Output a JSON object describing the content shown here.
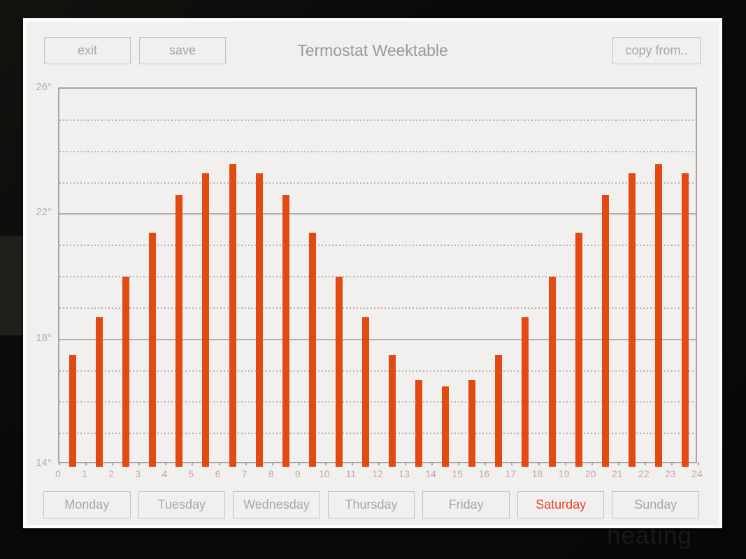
{
  "window": {
    "title": "Termostat Weektable",
    "buttons": {
      "exit": "exit",
      "save": "save",
      "copy_from": "copy from.."
    }
  },
  "background_text": "heating",
  "tabs": {
    "items": [
      {
        "label": "Monday",
        "selected": false
      },
      {
        "label": "Tuesday",
        "selected": false
      },
      {
        "label": "Wednesday",
        "selected": false
      },
      {
        "label": "Thursday",
        "selected": false
      },
      {
        "label": "Friday",
        "selected": false
      },
      {
        "label": "Saturday",
        "selected": true
      },
      {
        "label": "Sunday",
        "selected": false
      }
    ]
  },
  "colors": {
    "accent_bar": "#e24a12",
    "accent_selected_tab": "#e8432b",
    "window_bg": "#f1f0ef",
    "border_gray": "#c3c2c1",
    "button_text_gray": "#a8a7a6",
    "axis_gray": "#a7a6a5",
    "tick_label_gray": "#b1b0af"
  },
  "chart_data": {
    "type": "bar",
    "x_unit": "hour of day",
    "y_unit": "degrees Celsius",
    "categories": [
      0,
      1,
      2,
      3,
      4,
      5,
      6,
      7,
      8,
      9,
      10,
      11,
      12,
      13,
      14,
      15,
      16,
      17,
      18,
      19,
      20,
      21,
      22,
      23
    ],
    "values": [
      17.5,
      18.7,
      20,
      21.4,
      22.6,
      23.3,
      23.6,
      23.3,
      22.6,
      21.4,
      20,
      18.7,
      17.5,
      16.7,
      16.5,
      16.7,
      17.5,
      18.7,
      20,
      21.4,
      22.6,
      23.3,
      23.6,
      23.3
    ],
    "title": "",
    "xlabel": "",
    "ylabel": "",
    "xlim": [
      0,
      24
    ],
    "ylim": [
      14,
      26
    ],
    "y_major_ticks": [
      {
        "value": 26,
        "label": "26°"
      },
      {
        "value": 22,
        "label": "22°"
      },
      {
        "value": 18,
        "label": "18°"
      },
      {
        "value": 14,
        "label": "14°"
      }
    ],
    "y_solid_gridlines": [
      22,
      18
    ],
    "y_dashed_gridlines": [
      25,
      24,
      23,
      21,
      20,
      19,
      17,
      16,
      15
    ],
    "x_tick_labels": [
      "0",
      "1",
      "2",
      "3",
      "4",
      "5",
      "6",
      "7",
      "8",
      "9",
      "10",
      "11",
      "12",
      "13",
      "14",
      "15",
      "16",
      "17",
      "18",
      "19",
      "20",
      "21",
      "22",
      "23",
      "24"
    ],
    "grid": true,
    "legend": false
  }
}
